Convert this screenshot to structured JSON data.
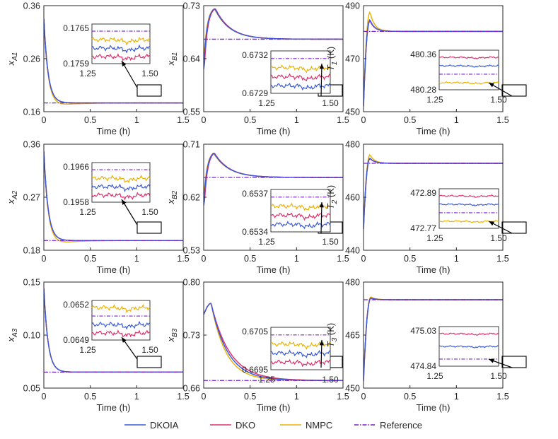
{
  "colors": {
    "DKOIA": "#3b5bdb",
    "DKO": "#e0306e",
    "NMPC": "#eab308",
    "Reference": "#7a1fd1",
    "axis": "#262626"
  },
  "legend": {
    "entries": [
      {
        "key": "DKOIA",
        "label": "DKOIA"
      },
      {
        "key": "DKO",
        "label": "DKO"
      },
      {
        "key": "NMPC",
        "label": "NMPC"
      },
      {
        "key": "Reference",
        "label": "Reference"
      }
    ]
  },
  "chart_data": [
    {
      "id": "xA1",
      "type": "line",
      "ylabel_main": "x",
      "ylabel_sub": "A1",
      "xlabel": "Time (h)",
      "xlim": [
        0,
        1.5
      ],
      "xticks": [
        "0",
        "0.5",
        "1",
        "1.5"
      ],
      "ylim": [
        0.16,
        0.36
      ],
      "yticks": [
        "0.16",
        "0.26",
        "0.36"
      ],
      "yvals": [
        0.16,
        0.26,
        0.36
      ],
      "kind": "decay",
      "start": 0.335,
      "ref": 0.1765,
      "offsets": {
        "DKOIA": 0,
        "DKO": 0,
        "NMPC": -0.004
      },
      "inset": {
        "xticks": [
          "1.25",
          "1.50"
        ],
        "yticks": [
          "0.1765",
          "0.1759"
        ],
        "order": [
          "Reference",
          "NMPC",
          "DKOIA",
          "DKO"
        ]
      }
    },
    {
      "id": "xB1",
      "type": "line",
      "ylabel_main": "x",
      "ylabel_sub": "B1",
      "xlabel": "Time (h)",
      "xlim": [
        0,
        1.5
      ],
      "xticks": [
        "0",
        "0.5",
        "1",
        "1.5"
      ],
      "ylim": [
        0.55,
        0.73
      ],
      "yticks": [
        "0.55",
        "0.64",
        "0.73"
      ],
      "yvals": [
        0.55,
        0.64,
        0.73
      ],
      "kind": "peak",
      "start": 0.622,
      "peak": 0.725,
      "peakT": 0.12,
      "ref": 0.6731,
      "inset": {
        "xticks": [
          "1.25",
          "1.50"
        ],
        "yticks": [
          "0.6732",
          "0.6729"
        ],
        "order": [
          "Reference",
          "NMPC",
          "DKO",
          "DKOIA"
        ]
      }
    },
    {
      "id": "T1",
      "type": "line",
      "ylabel_main": "T",
      "ylabel_sub": "1",
      "ylabel_unit": " (K)",
      "xlabel": "Time (h)",
      "xlim": [
        0,
        1.5
      ],
      "xticks": [
        "0",
        "0.5",
        "1",
        "1.5"
      ],
      "ylim": [
        450,
        490
      ],
      "yticks": [
        "450",
        "470",
        "490"
      ],
      "yvals": [
        450,
        470,
        490
      ],
      "kind": "rise",
      "start": 452,
      "peak": 487.5,
      "peakT": 0.07,
      "ref": 480.3,
      "inset": {
        "xticks": [
          "1.25",
          "1.50"
        ],
        "yticks": [
          "480.36",
          "480.28"
        ],
        "order": [
          "DKO",
          "DKOIA",
          "Reference",
          "NMPC"
        ]
      }
    },
    {
      "id": "xA2",
      "type": "line",
      "ylabel_main": "x",
      "ylabel_sub": "A2",
      "xlabel": "Time (h)",
      "xlim": [
        0,
        1.5
      ],
      "xticks": [
        "0",
        "0.5",
        "1",
        "1.5"
      ],
      "ylim": [
        0.18,
        0.36
      ],
      "yticks": [
        "0.18",
        "0.27",
        "0.36"
      ],
      "yvals": [
        0.18,
        0.27,
        0.36
      ],
      "kind": "decay",
      "start": 0.348,
      "ref": 0.1965,
      "offsets": {
        "DKOIA": 0,
        "DKO": 0,
        "NMPC": -0.004
      },
      "inset": {
        "xticks": [
          "1.25",
          "1.50"
        ],
        "yticks": [
          "0.1966",
          "0.1958"
        ],
        "order": [
          "Reference",
          "NMPC",
          "DKOIA",
          "DKO"
        ]
      }
    },
    {
      "id": "xB2",
      "type": "line",
      "ylabel_main": "x",
      "ylabel_sub": "B2",
      "xlabel": "Time (h)",
      "xlim": [
        0,
        1.5
      ],
      "xticks": [
        "0",
        "0.5",
        "1",
        "1.5"
      ],
      "ylim": [
        0.53,
        0.71
      ],
      "yticks": [
        "0.53",
        "0.62",
        "0.71"
      ],
      "yvals": [
        0.53,
        0.62,
        0.71
      ],
      "kind": "peak",
      "start": 0.606,
      "peak": 0.695,
      "peakT": 0.11,
      "ref": 0.6536,
      "inset": {
        "xticks": [
          "1.25",
          "1.50"
        ],
        "yticks": [
          "0.6537",
          "0.6534"
        ],
        "order": [
          "Reference",
          "NMPC",
          "DKO",
          "DKOIA"
        ]
      }
    },
    {
      "id": "T2",
      "type": "line",
      "ylabel_main": "T",
      "ylabel_sub": "2",
      "ylabel_unit": " (K)",
      "xlabel": "Time (h)",
      "xlim": [
        0,
        1.5
      ],
      "xticks": [
        "0",
        "0.5",
        "1",
        "1.5"
      ],
      "ylim": [
        440,
        480
      ],
      "yticks": [
        "440",
        "460",
        "480"
      ],
      "yvals": [
        440,
        460,
        480
      ],
      "kind": "rise",
      "start": 448,
      "peak": 476,
      "peakT": 0.07,
      "ref": 472.8,
      "inset": {
        "xticks": [
          "1.25",
          "1.50"
        ],
        "yticks": [
          "472.89",
          "472.77"
        ],
        "order": [
          "DKO",
          "DKOIA",
          "Reference",
          "NMPC"
        ]
      }
    },
    {
      "id": "xA3",
      "type": "line",
      "ylabel_main": "x",
      "ylabel_sub": "A3",
      "xlabel": "Time (h)",
      "xlim": [
        0,
        1.5
      ],
      "xticks": [
        "0",
        "0.5",
        "1",
        "1.5"
      ],
      "ylim": [
        0.05,
        0.15
      ],
      "yticks": [
        "0.05",
        "0.10",
        "0.15"
      ],
      "yvals": [
        0.05,
        0.1,
        0.15
      ],
      "kind": "decay",
      "start": 0.144,
      "ref": 0.0651,
      "offsets": {
        "DKOIA": 0,
        "DKO": 0,
        "NMPC": 0
      },
      "inset": {
        "xticks": [
          "1.25",
          "1.50"
        ],
        "yticks": [
          "0.0652",
          "0.0649"
        ],
        "order": [
          "NMPC",
          "Reference",
          "DKOIA",
          "DKO"
        ]
      }
    },
    {
      "id": "xB3",
      "type": "line",
      "ylabel_main": "x",
      "ylabel_sub": "B3",
      "xlabel": "Time (h)",
      "xlim": [
        0,
        1.5
      ],
      "xticks": [
        "0",
        "0.5",
        "1",
        "1.5"
      ],
      "ylim": [
        0.66,
        0.8
      ],
      "yticks": [
        "0.66",
        "0.73",
        "0.80"
      ],
      "yvals": [
        0.66,
        0.73,
        0.8
      ],
      "kind": "slowpeak",
      "start": 0.757,
      "peak": 0.772,
      "peakT": 0.08,
      "ref": 0.67,
      "inset": {
        "xticks": [
          "1.25",
          "1.50"
        ],
        "yticks": [
          "0.6705",
          "0.6695"
        ],
        "order": [
          "Reference",
          "NMPC",
          "DKOIA",
          "DKO"
        ]
      }
    },
    {
      "id": "T3",
      "type": "line",
      "ylabel_main": "T",
      "ylabel_sub": "3",
      "ylabel_unit": " (K)",
      "xlabel": "Time (h)",
      "xlim": [
        0,
        1.5
      ],
      "xticks": [
        "0",
        "0.5",
        "1",
        "1.5"
      ],
      "ylim": [
        450,
        480
      ],
      "yticks": [
        "450",
        "465",
        "480"
      ],
      "yvals": [
        450,
        465,
        480
      ],
      "kind": "rise",
      "start": 452,
      "peak": 475.8,
      "peakT": 0.08,
      "ref": 475.0,
      "inset": {
        "xticks": [
          "1.25",
          "1.50"
        ],
        "yticks": [
          "475.03",
          "474.84"
        ],
        "order": [
          "DKO",
          "DKOIA",
          "Reference"
        ]
      }
    }
  ]
}
